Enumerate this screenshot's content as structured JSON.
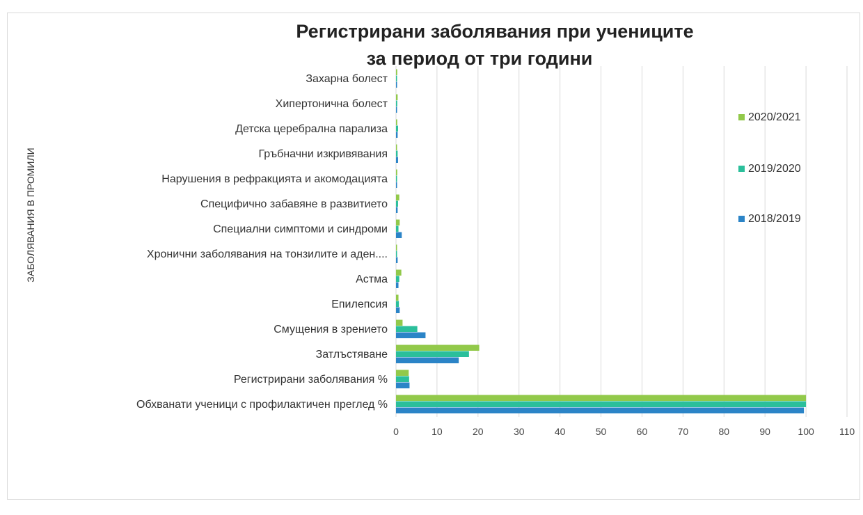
{
  "chart_data": {
    "type": "bar",
    "orientation": "horizontal",
    "title": [
      "Регистрирани заболявания при учениците",
      "за период от три години"
    ],
    "ylabel": "ЗАБОЛЯВАНИЯ В ПРОМИЛИ",
    "xlabel": "",
    "xlim": [
      0,
      110
    ],
    "xticks": [
      0,
      10,
      20,
      30,
      40,
      50,
      60,
      70,
      80,
      90,
      100,
      110
    ],
    "grid": "vertical",
    "legend_position": "right",
    "categories": [
      "Захарна болест",
      "Хипертонична болест",
      "Детска церебрална парализа",
      "Гръбначни изкривявания",
      "Нарушения в рефракцията и акомодацията",
      "Специфично забавяне в развитието",
      "Специални симптоми и синдроми",
      "Хронични заболявания на тонзилите и аден....",
      "Астма",
      "Епилепсия",
      "Смущения в зрението",
      "Затлъстяване",
      "Регистрирани заболявания %",
      "Обхванати ученици  с профилактичен преглед %"
    ],
    "series": [
      {
        "name": "2020/2021",
        "color": "#92c94a",
        "values": [
          0.3,
          0.4,
          0.3,
          0.2,
          0.3,
          0.8,
          0.9,
          0.1,
          1.3,
          0.6,
          1.6,
          20.3,
          3.1,
          100
        ]
      },
      {
        "name": "2019/2020",
        "color": "#2bbf9b",
        "values": [
          0.2,
          0.3,
          0.5,
          0.4,
          0.2,
          0.5,
          0.6,
          0.2,
          0.8,
          0.7,
          5.2,
          17.8,
          3.2,
          100
        ]
      },
      {
        "name": "2018/2019",
        "color": "#2b84c7",
        "values": [
          0.2,
          0.2,
          0.4,
          0.5,
          0.2,
          0.4,
          1.4,
          0.4,
          0.6,
          0.9,
          7.2,
          15.3,
          3.3,
          99.5
        ]
      }
    ]
  }
}
